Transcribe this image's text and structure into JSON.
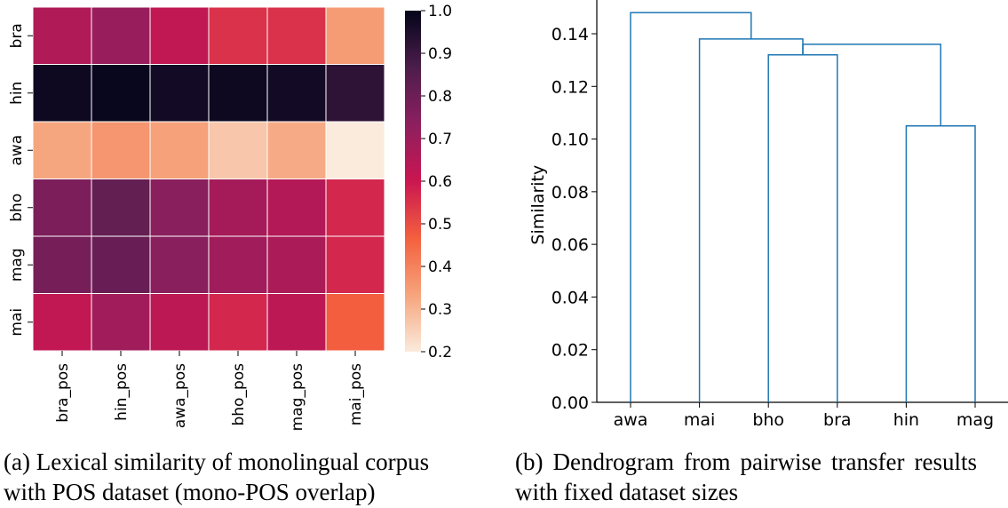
{
  "colors": {
    "heatmap_scale": [
      "#faebdd",
      "#f6a47c",
      "#f3603e",
      "#ca1651",
      "#8d1f5f",
      "#4c1d4b",
      "#03051a"
    ],
    "dendrogram_line": "#1f77b4"
  },
  "captions": {
    "a": "(a) Lexical similarity of monolingual corpus with POS dataset (mono-POS overlap)",
    "b": "(b) Dendrogram from pairwise transfer results with fixed dataset sizes"
  },
  "chart_data": [
    {
      "type": "heatmap",
      "rows": [
        "bra",
        "hin",
        "awa",
        "bho",
        "mag",
        "mai"
      ],
      "columns": [
        "bra_pos",
        "hin_pos",
        "awa_pos",
        "bho_pos",
        "mag_pos",
        "mai_pos"
      ],
      "values": [
        [
          0.66,
          0.71,
          0.62,
          0.55,
          0.55,
          0.35
        ],
        [
          0.98,
          0.99,
          0.97,
          0.98,
          0.97,
          0.92
        ],
        [
          0.33,
          0.36,
          0.34,
          0.27,
          0.32,
          0.2
        ],
        [
          0.77,
          0.82,
          0.74,
          0.68,
          0.65,
          0.57
        ],
        [
          0.78,
          0.81,
          0.74,
          0.69,
          0.67,
          0.57
        ],
        [
          0.62,
          0.69,
          0.63,
          0.57,
          0.63,
          0.47
        ]
      ],
      "colorbar": {
        "min": 0.2,
        "max": 1.0,
        "ticks": [
          "0.2",
          "0.3",
          "0.4",
          "0.5",
          "0.6",
          "0.7",
          "0.8",
          "0.9",
          "1.0"
        ]
      },
      "grid": true
    },
    {
      "type": "dendrogram",
      "leaves": [
        "awa",
        "mai",
        "bho",
        "bra",
        "hin",
        "mag"
      ],
      "ylabel": "Similarity",
      "ylim": [
        0,
        0.15
      ],
      "yticks": [
        "0.00",
        "0.02",
        "0.04",
        "0.06",
        "0.08",
        "0.10",
        "0.12",
        "0.14"
      ],
      "links": [
        {
          "left": "hin",
          "right": "mag",
          "height": 0.105
        },
        {
          "left": "bho",
          "right": "bra",
          "height": 0.132
        },
        {
          "left": "bra",
          "right": "hin",
          "height": 0.136
        },
        {
          "left": "mai",
          "right": "bho",
          "height": 0.138
        },
        {
          "left": "awa",
          "right": "mai",
          "height": 0.148
        }
      ]
    }
  ]
}
